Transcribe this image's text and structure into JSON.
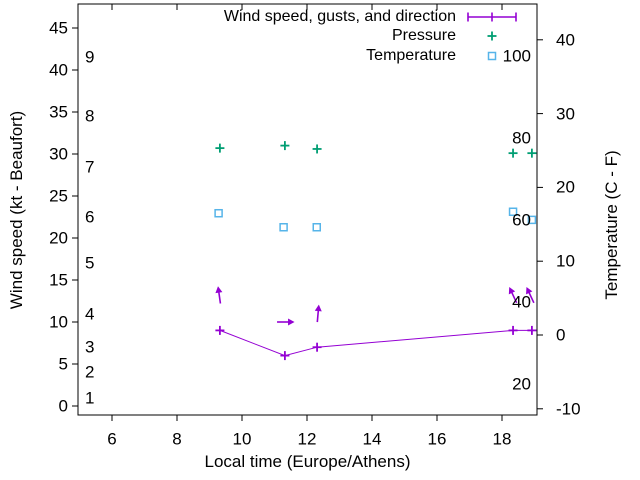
{
  "figure": {
    "xlabel": "Local time (Europe/Athens)",
    "ylabel_left": "Wind speed (kt - Beaufort)",
    "ylabel_right": "Temperature (C - F)",
    "legend": [
      {
        "label": "Wind speed, gusts, and direction",
        "series": "wind"
      },
      {
        "label": "Pressure",
        "series": "pressure"
      },
      {
        "label": "Temperature",
        "series": "temperature"
      }
    ]
  },
  "colors": {
    "wind": "#9400d3",
    "pressure": "#009e73",
    "temperature": "#56b4e9",
    "text": "#000000",
    "border": "#000000",
    "background": "#ffffff"
  },
  "chart_data": {
    "type": "line",
    "title": "",
    "xlabel": "Local time (Europe/Athens)",
    "ylabel": "Wind speed (kt - Beaufort)",
    "y2label": "Temperature (C - F)",
    "x_ticks": [
      6,
      8,
      10,
      12,
      14,
      16,
      18
    ],
    "x_range": [
      4.95,
      19.08
    ],
    "y_ticks": [
      0,
      5,
      10,
      15,
      20,
      25,
      30,
      35,
      40,
      45
    ],
    "y_range": [
      -1,
      48
    ],
    "y2_ticks": [
      -10,
      0,
      10,
      20,
      30,
      40
    ],
    "y2_range": [
      -10.9,
      44.8
    ],
    "grid": false,
    "legend_position": "top-right-inside",
    "beaufort_scale_labels": [
      {
        "label": "1",
        "kt": 1
      },
      {
        "label": "2",
        "kt": 4
      },
      {
        "label": "3",
        "kt": 7
      },
      {
        "label": "4",
        "kt": 11
      },
      {
        "label": "5",
        "kt": 17
      },
      {
        "label": "6",
        "kt": 22.5
      },
      {
        "label": "7",
        "kt": 28.5
      },
      {
        "label": "8",
        "kt": 34.5
      },
      {
        "label": "9",
        "kt": 41.5
      }
    ],
    "fahrenheit_scale_labels": [
      {
        "label": "20",
        "f": 20
      },
      {
        "label": "40",
        "f": 40
      },
      {
        "label": "60",
        "f": 60
      },
      {
        "label": "80",
        "f": 80
      },
      {
        "label": "100",
        "f": 100
      }
    ],
    "series": [
      {
        "key": "wind",
        "name": "Wind speed, gusts, and direction",
        "axis": "left",
        "type": "line+markers",
        "marker": "plus",
        "x": [
          9.32,
          11.32,
          12.31,
          18.34,
          18.92
        ],
        "y": [
          9,
          6,
          7,
          9,
          9
        ]
      },
      {
        "key": "pressure",
        "name": "Pressure",
        "axis": "left",
        "type": "markers",
        "marker": "plus",
        "x": [
          9.32,
          11.32,
          12.31,
          18.34,
          18.92
        ],
        "y": [
          30.7,
          31.0,
          30.6,
          30.1,
          30.1
        ]
      },
      {
        "key": "temperature",
        "name": "Temperature",
        "axis": "right",
        "type": "markers",
        "marker": "square",
        "x": [
          9.28,
          11.28,
          12.3,
          18.34,
          18.92
        ],
        "y": [
          16.5,
          14.6,
          14.6,
          16.7,
          15.6
        ]
      }
    ],
    "wind_direction_arrows": [
      {
        "x": 9.3,
        "kt": 13.2,
        "angle_deg": -8
      },
      {
        "x": 11.34,
        "kt": 10.0,
        "angle_deg": 90
      },
      {
        "x": 12.34,
        "kt": 11.0,
        "angle_deg": 5
      },
      {
        "x": 18.34,
        "kt": 13.2,
        "angle_deg": -25
      },
      {
        "x": 18.87,
        "kt": 13.2,
        "angle_deg": -25
      }
    ]
  }
}
